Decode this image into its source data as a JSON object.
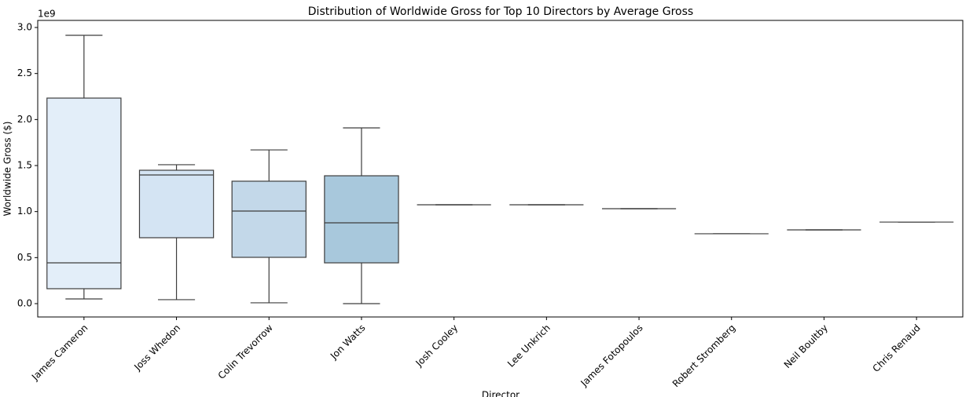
{
  "chart_data": {
    "type": "box",
    "title": "Distribution of Worldwide Gross for Top 10 Directors by Average Gross",
    "xlabel": "Director",
    "ylabel": "Worldwide Gross ($)",
    "y_offset_label": "1e9",
    "categories": [
      "James Cameron",
      "Joss Whedon",
      "Colin Trevorrow",
      "Jon Watts",
      "Josh Cooley",
      "Lee Unkrich",
      "James Fotopoulos",
      "Robert Stromberg",
      "Neil Boultby",
      "Chris Renaud"
    ],
    "colors": [
      "#e3eef9",
      "#d4e4f3",
      "#c3d8e9",
      "#a8c8dc",
      "#89bedc",
      "#62a7d2",
      "#4191c6",
      "#2979b9",
      "#1361a9",
      "#08468b"
    ],
    "boxes": [
      {
        "min": 0.051,
        "q1": 0.162,
        "median": 0.443,
        "q3": 2.233,
        "max": 2.915
      },
      {
        "min": 0.043,
        "q1": 0.716,
        "median": 1.398,
        "q3": 1.449,
        "max": 1.509
      },
      {
        "min": 0.009,
        "q1": 0.503,
        "median": 1.006,
        "q3": 1.33,
        "max": 1.67
      },
      {
        "min": 0.0,
        "q1": 0.443,
        "median": 0.878,
        "q3": 1.389,
        "max": 1.909
      },
      {
        "min": 1.074,
        "q1": 1.074,
        "median": 1.074,
        "q3": 1.074,
        "max": 1.074
      },
      {
        "min": 1.074,
        "q1": 1.074,
        "median": 1.074,
        "q3": 1.074,
        "max": 1.074
      },
      {
        "min": 1.031,
        "q1": 1.031,
        "median": 1.031,
        "q3": 1.031,
        "max": 1.031
      },
      {
        "min": 0.759,
        "q1": 0.759,
        "median": 0.759,
        "q3": 0.759,
        "max": 0.759
      },
      {
        "min": 0.801,
        "q1": 0.801,
        "median": 0.801,
        "q3": 0.801,
        "max": 0.801
      },
      {
        "min": 0.886,
        "q1": 0.886,
        "median": 0.886,
        "q3": 0.886,
        "max": 0.886
      }
    ],
    "ylim": [
      -0.145,
      3.077
    ],
    "yticks": [
      {
        "value": 0,
        "label": "0.0"
      },
      0.5,
      {
        "value": 1,
        "label": "1.0"
      },
      1.5,
      {
        "value": 2,
        "label": "2.0"
      },
      2.5,
      {
        "value": 3,
        "label": "3.0"
      }
    ]
  }
}
